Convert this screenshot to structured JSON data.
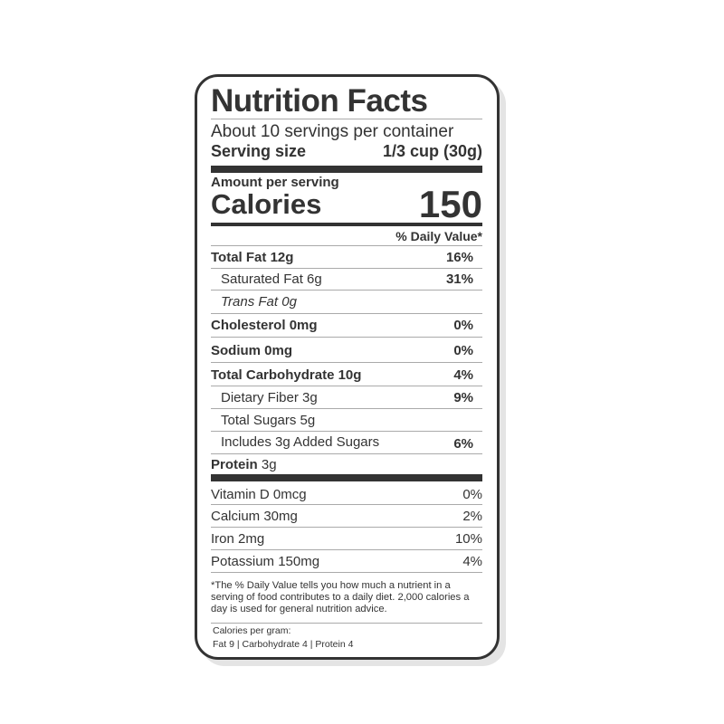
{
  "title": "Nutrition Facts",
  "servings": "About 10 servings per container",
  "serving_size_label": "Serving size",
  "serving_size_value": "1/3 cup (30g)",
  "amount_per_serving": "Amount per serving",
  "calories_label": "Calories",
  "calories_value": "150",
  "dv_header": "% Daily Value*",
  "nutrients": [
    {
      "name": "Total Fat",
      "amount": "12g",
      "dv": "16%"
    },
    {
      "name": "Saturated Fat 6g",
      "dv": "31%"
    },
    {
      "name": "Trans Fat 0g",
      "dv": ""
    },
    {
      "name": "Cholesterol",
      "amount": "0mg",
      "dv": "0%"
    },
    {
      "name": "Sodium",
      "amount": "0mg",
      "dv": "0%"
    },
    {
      "name": "Total Carbohydrate",
      "amount": "10g",
      "dv": "4%"
    },
    {
      "name": "Dietary Fiber 3g",
      "dv": "9%"
    },
    {
      "name": "Total Sugars 5g",
      "dv": ""
    },
    {
      "name": "Includes 3g Added Sugars",
      "dv": "6%"
    },
    {
      "name": "Protein",
      "amount": "3g",
      "dv": ""
    }
  ],
  "vitamins": [
    {
      "name": "Vitamin D 0mcg",
      "dv": "0%"
    },
    {
      "name": "Calcium 30mg",
      "dv": "2%"
    },
    {
      "name": "Iron 2mg",
      "dv": "10%"
    },
    {
      "name": "Potassium 150mg",
      "dv": "4%"
    }
  ],
  "footnote": "*The % Daily Value tells you how much a nutrient in a serving of food contributes to a daily diet. 2,000 calories a day is used for general nutrition advice.",
  "calories_per_gram_label": "Calories per gram:",
  "calories_per_gram": "Fat 9 | Carbohydrate 4 | Protein 4"
}
